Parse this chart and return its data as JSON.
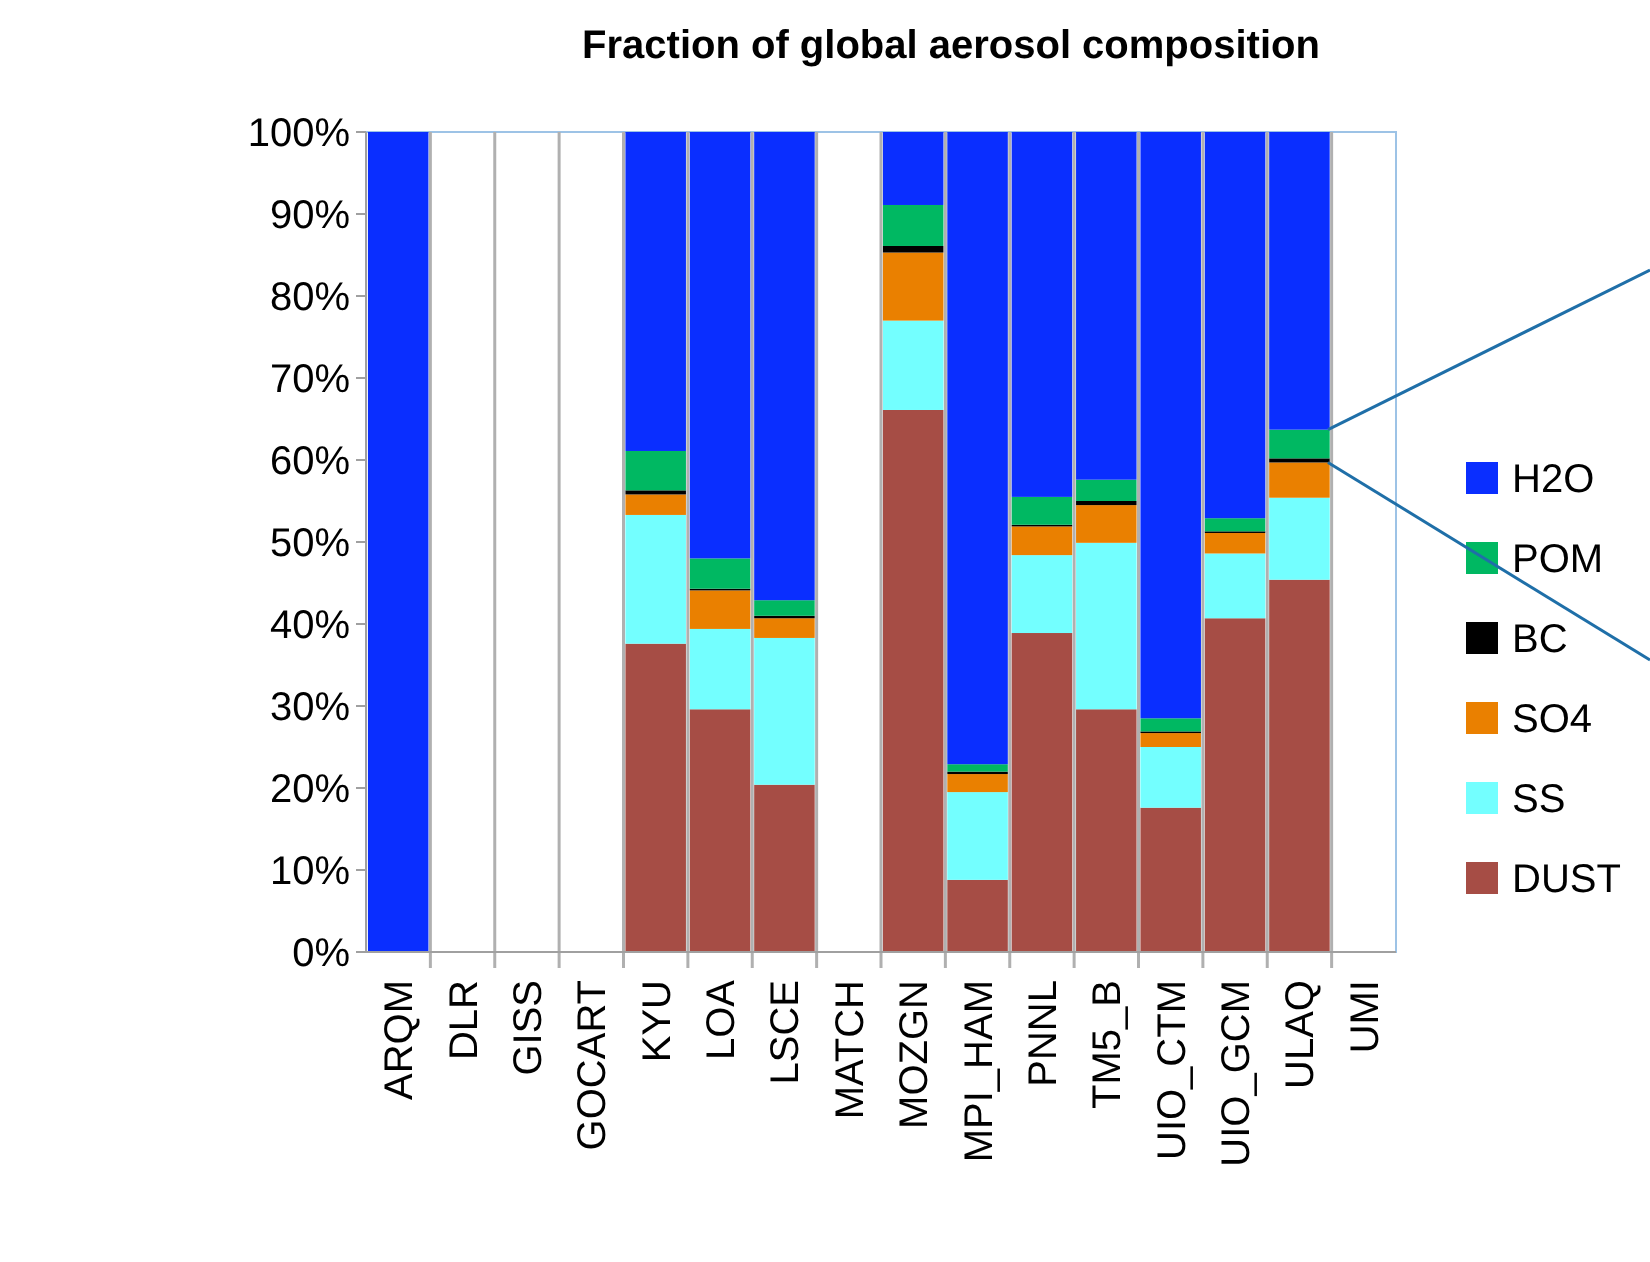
{
  "chart_data": {
    "type": "bar",
    "stacked": true,
    "title": "Fraction of global aerosol composition",
    "categories": [
      "ARQM",
      "DLR",
      "GISS",
      "GOCART",
      "KYU",
      "LOA",
      "LSCE",
      "MATCH",
      "MOZGN",
      "MPI_HAM",
      "PNNL",
      "TM5_B",
      "UIO_CTM",
      "UIO_GCM",
      "ULAQ",
      "UMI"
    ],
    "series": [
      {
        "name": "DUST",
        "color": "#a64d45",
        "values": [
          0,
          null,
          null,
          null,
          37.6,
          29.6,
          20.4,
          null,
          66.1,
          8.8,
          38.9,
          29.6,
          17.6,
          40.7,
          45.4,
          null
        ]
      },
      {
        "name": "SS",
        "color": "#73ffff",
        "values": [
          0,
          null,
          null,
          null,
          15.7,
          9.8,
          17.9,
          null,
          10.9,
          10.7,
          9.5,
          20.3,
          7.4,
          7.9,
          10.0,
          null
        ]
      },
      {
        "name": "SO4",
        "color": "#ea8000",
        "values": [
          0,
          null,
          null,
          null,
          2.5,
          4.7,
          2.4,
          null,
          8.3,
          2.2,
          3.5,
          4.6,
          1.7,
          2.5,
          4.3,
          null
        ]
      },
      {
        "name": "BC",
        "color": "#000000",
        "values": [
          0,
          null,
          null,
          null,
          0.5,
          0.2,
          0.3,
          null,
          0.8,
          0.3,
          0.2,
          0.5,
          0.2,
          0.2,
          0.5,
          null
        ]
      },
      {
        "name": "POM",
        "color": "#00b862",
        "values": [
          0,
          null,
          null,
          null,
          4.8,
          3.7,
          1.9,
          null,
          5.0,
          0.9,
          3.4,
          2.6,
          1.6,
          1.6,
          3.5,
          null
        ]
      },
      {
        "name": "H2O",
        "color": "#0a2eff",
        "values": [
          100,
          null,
          null,
          null,
          38.9,
          52.0,
          57.1,
          null,
          8.9,
          77.1,
          44.5,
          42.4,
          71.5,
          47.1,
          36.3,
          null
        ]
      }
    ],
    "ylim": [
      0,
      100
    ],
    "yticks": [
      {
        "value": 0,
        "label": "0%"
      },
      {
        "value": 10,
        "label": "10%"
      },
      {
        "value": 20,
        "label": "20%"
      },
      {
        "value": 30,
        "label": "30%"
      },
      {
        "value": 40,
        "label": "40%"
      },
      {
        "value": 50,
        "label": "50%"
      },
      {
        "value": 60,
        "label": "60%"
      },
      {
        "value": 70,
        "label": "70%"
      },
      {
        "value": 80,
        "label": "80%"
      },
      {
        "value": 90,
        "label": "90%"
      },
      {
        "value": 100,
        "label": "100%"
      }
    ],
    "grid": "x",
    "legend": "right"
  }
}
